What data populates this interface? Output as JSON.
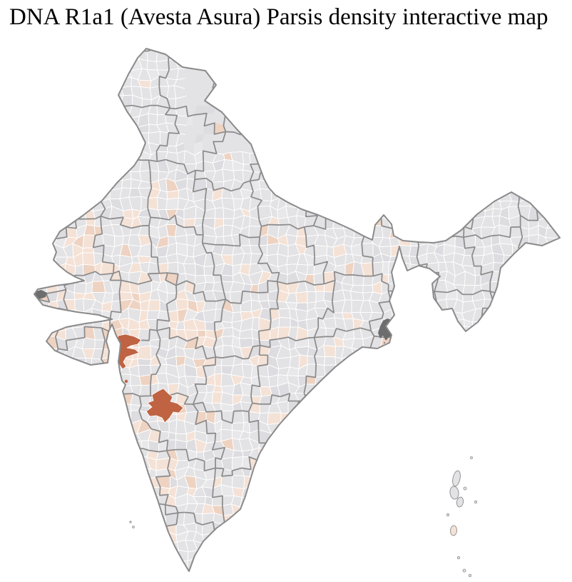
{
  "title": "DNA R1a1 (Avesta Asura) Parsis density interactive map",
  "map": {
    "label": "India district-level density choropleth",
    "interactive": true,
    "palette": {
      "background": "#ffffff",
      "district_fill": "#e3e2e4",
      "district_fill_light": "#e8e7e9",
      "district_fill_dark": "#dddce0",
      "density_low": "#f5e2d6",
      "density_mid": "#eed3c2",
      "density_high": "#bf6342",
      "non_census_area": "#6e6d6e",
      "district_border": "#ffffff",
      "state_border": "#8b8a8b",
      "coastline": "#8b8a8b"
    },
    "legend_levels": [
      {
        "id": "none",
        "color": "#e3e2e4"
      },
      {
        "id": "low",
        "color": "#f5e2d6"
      },
      {
        "id": "medium",
        "color": "#eed3c2"
      },
      {
        "id": "high",
        "color": "#bf6342"
      }
    ],
    "features": {
      "high_density_regions": [
        {
          "id": "west-coastal-district-blob",
          "level": "high"
        },
        {
          "id": "deccan-inland-district-blob",
          "level": "high"
        },
        {
          "id": "coastal-metro-dot",
          "level": "high"
        }
      ],
      "non_census_regions": [
        {
          "id": "eastern-delta-area"
        },
        {
          "id": "western-marsh-tip"
        }
      ],
      "island_chains": [
        {
          "id": "andaman-nicobar-islands"
        },
        {
          "id": "lakshadweep-islands"
        }
      ]
    }
  }
}
